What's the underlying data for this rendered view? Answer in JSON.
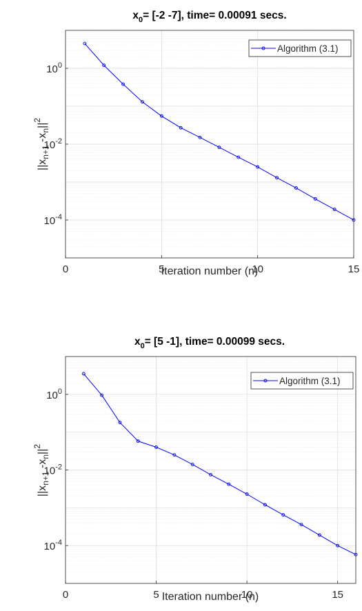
{
  "chart_data": [
    {
      "type": "line",
      "title": {
        "main": "x",
        "sub": "0",
        "rest": "= [-2 -7], time= 0.00091 secs."
      },
      "xlabel": "Iteration number (n)",
      "ylabel": {
        "p1": "||x",
        "s1": "n+1",
        "p2": " -x",
        "s2": "n",
        "p3": "||",
        "sup": "2"
      },
      "xlim": [
        0,
        15
      ],
      "ylim_exp": [
        -5,
        1
      ],
      "yscale": "log",
      "xticks": [
        "0",
        "5",
        "10",
        "15"
      ],
      "yticks": [
        {
          "base": "10",
          "exp": "0",
          "value": 1
        },
        {
          "base": "10",
          "exp": "-2",
          "value": 0.01
        },
        {
          "base": "10",
          "exp": "-4",
          "value": 0.0001
        }
      ],
      "grid": true,
      "legend_position": "top-right",
      "series": [
        {
          "name": "Algorithm (3.1)",
          "color": "#0000ff",
          "marker": "circle",
          "x": [
            1,
            2,
            3,
            4,
            5,
            6,
            7,
            8,
            9,
            10,
            11,
            12,
            13,
            14,
            15
          ],
          "y": [
            4.5,
            1.2,
            0.38,
            0.13,
            0.055,
            0.027,
            0.015,
            0.0082,
            0.0045,
            0.0025,
            0.0013,
            0.0007,
            0.00036,
            0.00019,
            0.0001
          ]
        }
      ]
    },
    {
      "type": "line",
      "title": {
        "main": "x",
        "sub": "0",
        "rest": "= [5 -1], time= 0.00099 secs."
      },
      "xlabel": "Iteration number (n)",
      "ylabel": {
        "p1": "||x",
        "s1": "n+1",
        "p2": " -x",
        "s2": "n",
        "p3": "||",
        "sup": "2"
      },
      "xlim": [
        0,
        16
      ],
      "ylim_exp": [
        -5,
        1
      ],
      "yscale": "log",
      "xticks": [
        "0",
        "5",
        "10",
        "15"
      ],
      "yticks": [
        {
          "base": "10",
          "exp": "0",
          "value": 1
        },
        {
          "base": "10",
          "exp": "-2",
          "value": 0.01
        },
        {
          "base": "10",
          "exp": "-4",
          "value": 0.0001
        }
      ],
      "grid": true,
      "legend_position": "top-right",
      "series": [
        {
          "name": "Algorithm (3.1)",
          "color": "#0000ff",
          "marker": "circle",
          "x": [
            1,
            2,
            3,
            4,
            5,
            6,
            7,
            8,
            9,
            10,
            11,
            12,
            13,
            14,
            15,
            16
          ],
          "y": [
            3.5,
            0.95,
            0.18,
            0.058,
            0.04,
            0.025,
            0.014,
            0.0075,
            0.0042,
            0.0023,
            0.0012,
            0.00065,
            0.00036,
            0.00019,
            0.0001,
            5.8e-05
          ]
        }
      ]
    }
  ]
}
